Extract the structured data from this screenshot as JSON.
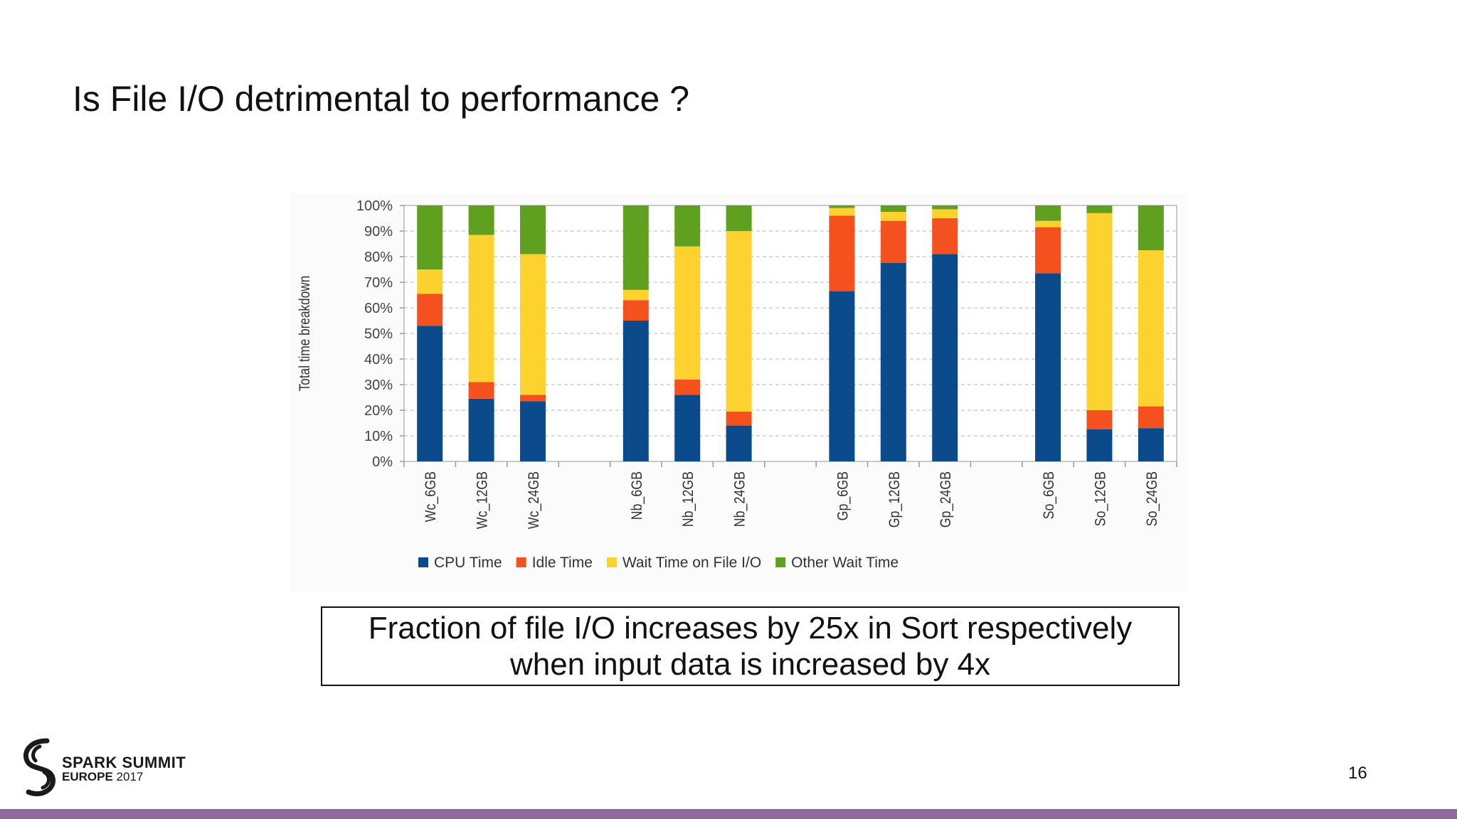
{
  "slide": {
    "title": "Is File I/O detrimental to performance ?",
    "callout_line1": "Fraction of  file I/O increases by 25x in Sort respectively",
    "callout_line2": "when input data is increased by 4x",
    "page_number": "16",
    "logo_line1": "SPARK SUMMIT",
    "logo_line2_bold": "EUROPE",
    "logo_line2_year": "2017",
    "accent_color": "#8f6a9b"
  },
  "chart_data": {
    "type": "bar",
    "stacked": true,
    "title": "",
    "xlabel": "",
    "ylabel": "Total time breakdown",
    "ylim": [
      0,
      100
    ],
    "yticks": [
      0,
      10,
      20,
      30,
      40,
      50,
      60,
      70,
      80,
      90,
      100
    ],
    "ytick_labels": [
      "0%",
      "10%",
      "20%",
      "30%",
      "40%",
      "50%",
      "60%",
      "70%",
      "80%",
      "90%",
      "100%"
    ],
    "grid": true,
    "legend": "bottom",
    "groups": [
      [
        "Wc_6GB",
        "Wc_12GB",
        "Wc_24GB"
      ],
      [
        "Nb_6GB",
        "Nb_12GB",
        "Nb_24GB"
      ],
      [
        "Gp_6GB",
        "Gp_12GB",
        "Gp_24GB"
      ],
      [
        "So_6GB",
        "So_12GB",
        "So_24GB"
      ]
    ],
    "categories": [
      "Wc_6GB",
      "Wc_12GB",
      "Wc_24GB",
      "Nb_6GB",
      "Nb_12GB",
      "Nb_24GB",
      "Gp_6GB",
      "Gp_12GB",
      "Gp_24GB",
      "So_6GB",
      "So_12GB",
      "So_24GB"
    ],
    "series": [
      {
        "name": "CPU Time",
        "color": "#0b4a8b",
        "values": [
          53,
          24.5,
          23.5,
          55,
          26,
          14,
          66.5,
          77.5,
          81,
          73.5,
          12.5,
          13
        ]
      },
      {
        "name": "Idle Time",
        "color": "#f4511e",
        "values": [
          12.5,
          6.5,
          2.5,
          8,
          6,
          5.5,
          29.5,
          16.5,
          14,
          18,
          7.5,
          8.5
        ]
      },
      {
        "name": "Wait Time on File I/O",
        "color": "#fdd22f",
        "values": [
          9.5,
          57.5,
          55,
          4,
          52,
          70.5,
          3,
          3.5,
          3.5,
          2.5,
          77,
          61
        ]
      },
      {
        "name": "Other Wait Time",
        "color": "#5fa11e",
        "values": [
          25,
          11.5,
          19,
          33,
          16,
          10,
          1,
          2.5,
          1.5,
          6,
          3,
          17.5
        ]
      }
    ]
  }
}
